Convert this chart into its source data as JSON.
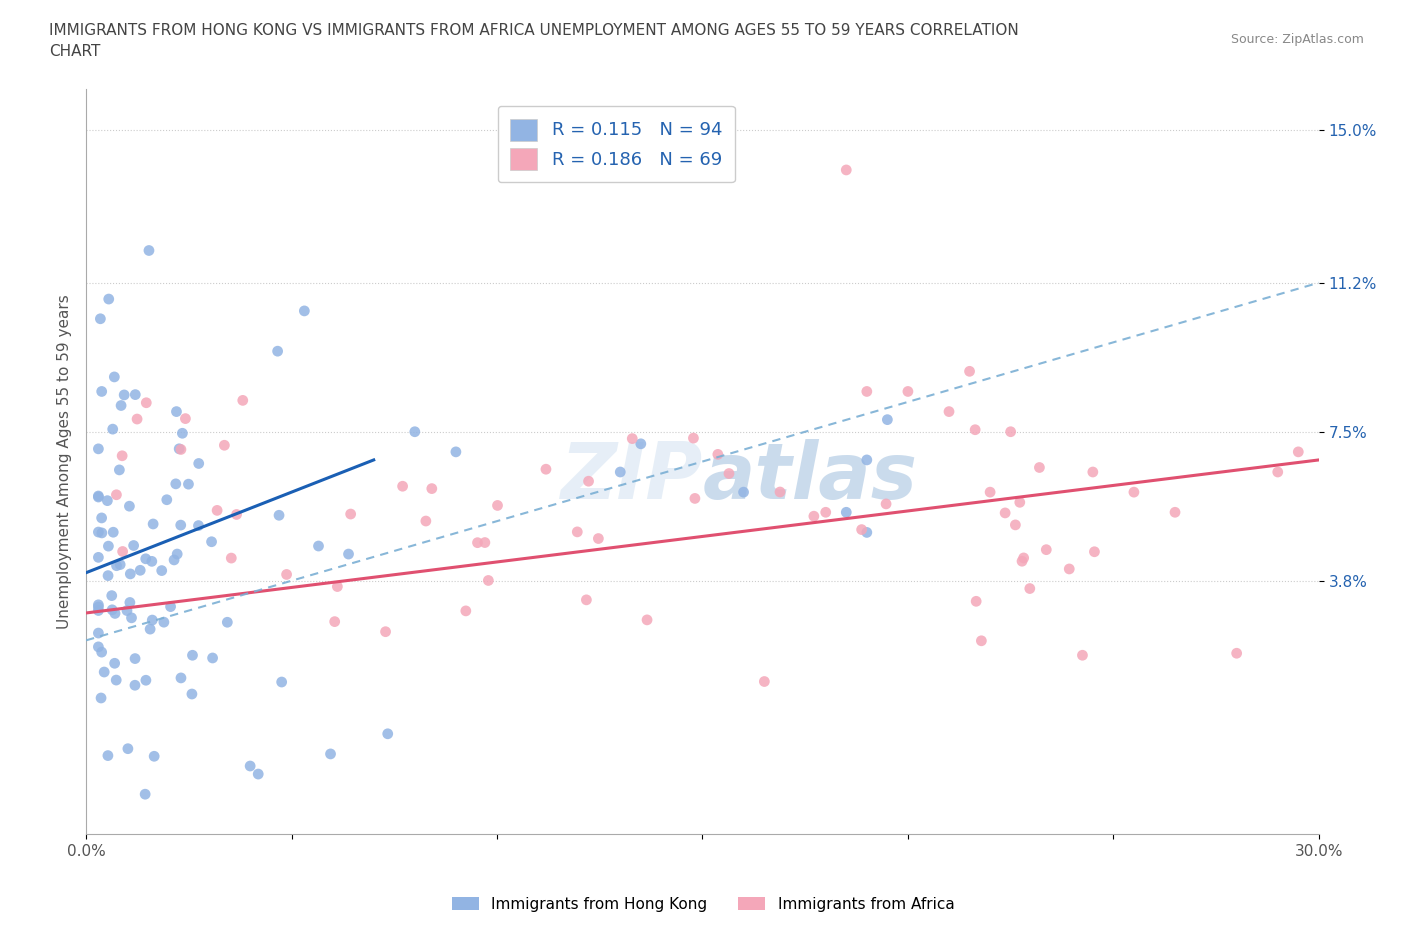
{
  "title": "IMMIGRANTS FROM HONG KONG VS IMMIGRANTS FROM AFRICA UNEMPLOYMENT AMONG AGES 55 TO 59 YEARS CORRELATION\nCHART",
  "source": "Source: ZipAtlas.com",
  "ylabel": "Unemployment Among Ages 55 to 59 years",
  "xlim": [
    0.0,
    0.3
  ],
  "ylim": [
    -0.025,
    0.16
  ],
  "ytick_positions": [
    0.038,
    0.075,
    0.112,
    0.15
  ],
  "ytick_labels": [
    "3.8%",
    "7.5%",
    "11.2%",
    "15.0%"
  ],
  "legend_r1": "0.115",
  "legend_n1": "94",
  "legend_r2": "0.186",
  "legend_n2": "69",
  "legend_label1": "Immigrants from Hong Kong",
  "legend_label2": "Immigrants from Africa",
  "hk_color": "#92b4e3",
  "africa_color": "#f4a7b9",
  "hk_trend_color": "#1a5fb4",
  "africa_trend_color": "#e05070",
  "dash_color": "#7bafd4",
  "background_color": "#ffffff",
  "hk_trend_x0": 0.0,
  "hk_trend_y0": 0.04,
  "hk_trend_x1": 0.07,
  "hk_trend_y1": 0.068,
  "africa_trend_x0": 0.0,
  "africa_trend_y0": 0.03,
  "africa_trend_x1": 0.3,
  "africa_trend_y1": 0.068,
  "dash_trend_x0": 0.05,
  "dash_trend_y0": 0.038,
  "dash_trend_x1": 0.3,
  "dash_trend_y1": 0.112
}
